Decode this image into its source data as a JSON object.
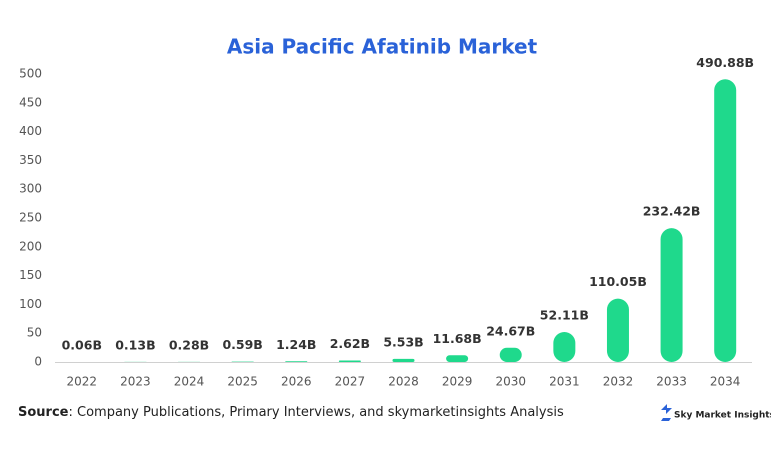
{
  "chart_data": {
    "type": "bar",
    "title": "Asia Pacific Afatinib Market",
    "categories": [
      "2022",
      "2023",
      "2024",
      "2025",
      "2026",
      "2027",
      "2028",
      "2029",
      "2030",
      "2031",
      "2032",
      "2033",
      "2034"
    ],
    "values": [
      0.06,
      0.13,
      0.28,
      0.59,
      1.24,
      2.62,
      5.53,
      11.68,
      24.67,
      52.11,
      110.05,
      232.42,
      490.88
    ],
    "value_labels": [
      "0.06B",
      "0.13B",
      "0.28B",
      "0.59B",
      "1.24B",
      "2.62B",
      "5.53B",
      "11.68B",
      "24.67B",
      "52.11B",
      "110.05B",
      "232.42B",
      "490.88B"
    ],
    "color": "#1fd98c",
    "ylim": [
      0,
      500
    ],
    "yticks": [
      0,
      50,
      100,
      150,
      200,
      250,
      300,
      350,
      400,
      450,
      500
    ],
    "grid": false
  },
  "source_label": "Source",
  "source_text": ": Company Publications, Primary Interviews, and skymarketinsights Analysis",
  "logo": "Sky Market Insights"
}
